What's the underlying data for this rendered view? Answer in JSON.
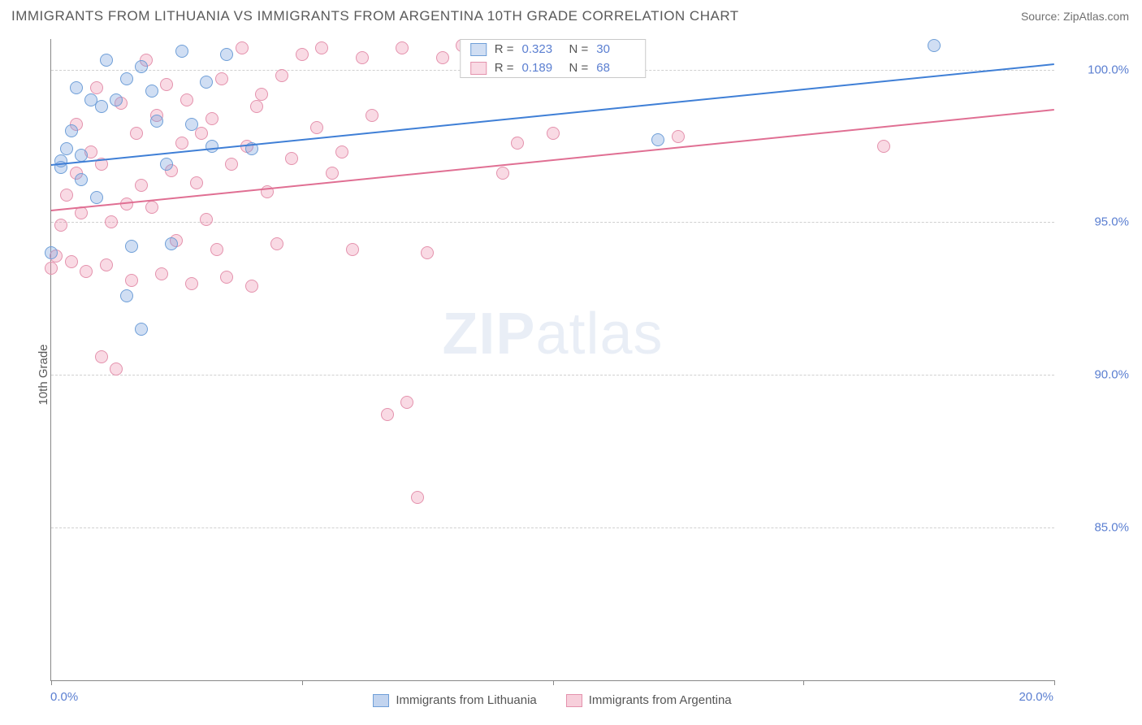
{
  "header": {
    "title": "IMMIGRANTS FROM LITHUANIA VS IMMIGRANTS FROM ARGENTINA 10TH GRADE CORRELATION CHART",
    "source": "Source: ZipAtlas.com"
  },
  "ylabel": "10th Grade",
  "watermark": {
    "part1": "ZIP",
    "part2": "atlas"
  },
  "chart": {
    "type": "scatter",
    "background_color": "#ffffff",
    "grid_color": "#d0d0d0",
    "axis_color": "#888888",
    "tick_label_color": "#5b7fd1",
    "tick_fontsize": 15,
    "xlim": [
      0,
      20
    ],
    "ylim": [
      80,
      101
    ],
    "xticks": [
      0,
      5,
      10,
      15,
      20
    ],
    "xtick_labels": [
      "0.0%",
      "",
      "",
      "",
      "20.0%"
    ],
    "yticks": [
      85,
      90,
      95,
      100
    ],
    "ytick_labels": [
      "85.0%",
      "90.0%",
      "95.0%",
      "100.0%"
    ],
    "marker_radius": 8,
    "marker_opacity": 0.35,
    "series": [
      {
        "name": "Immigrants from Lithuania",
        "color_fill": "rgba(120,160,220,0.35)",
        "color_stroke": "#6f9fd8",
        "R": "0.323",
        "N": "30",
        "trend": {
          "y_at_x0": 96.9,
          "y_at_x20": 100.2,
          "color": "#3f7fd6",
          "width": 2
        },
        "points": [
          [
            0.2,
            96.8
          ],
          [
            0.2,
            97.0
          ],
          [
            0.3,
            97.4
          ],
          [
            0.4,
            98.0
          ],
          [
            0.5,
            99.4
          ],
          [
            0.6,
            97.2
          ],
          [
            0.6,
            96.4
          ],
          [
            0.8,
            99.0
          ],
          [
            0.9,
            95.8
          ],
          [
            1.0,
            98.8
          ],
          [
            1.1,
            100.3
          ],
          [
            1.3,
            99.0
          ],
          [
            1.5,
            99.7
          ],
          [
            1.5,
            92.6
          ],
          [
            1.6,
            94.2
          ],
          [
            1.8,
            100.1
          ],
          [
            1.8,
            91.5
          ],
          [
            2.0,
            99.3
          ],
          [
            2.1,
            98.3
          ],
          [
            2.3,
            96.9
          ],
          [
            2.4,
            94.3
          ],
          [
            2.6,
            100.6
          ],
          [
            2.8,
            98.2
          ],
          [
            3.1,
            99.6
          ],
          [
            3.2,
            97.5
          ],
          [
            3.5,
            100.5
          ],
          [
            4.0,
            97.4
          ],
          [
            12.1,
            97.7
          ],
          [
            17.6,
            100.8
          ],
          [
            0.0,
            94.0
          ]
        ]
      },
      {
        "name": "Immigrants from Argentina",
        "color_fill": "rgba(235,140,170,0.32)",
        "color_stroke": "#e492ad",
        "R": "0.189",
        "N": "68",
        "trend": {
          "y_at_x0": 95.4,
          "y_at_x20": 98.7,
          "color": "#e06f93",
          "width": 2
        },
        "points": [
          [
            0.0,
            93.5
          ],
          [
            0.1,
            93.9
          ],
          [
            0.2,
            94.9
          ],
          [
            0.3,
            95.9
          ],
          [
            0.4,
            93.7
          ],
          [
            0.5,
            96.6
          ],
          [
            0.5,
            98.2
          ],
          [
            0.6,
            95.3
          ],
          [
            0.7,
            93.4
          ],
          [
            0.8,
            97.3
          ],
          [
            0.9,
            99.4
          ],
          [
            1.0,
            96.9
          ],
          [
            1.1,
            93.6
          ],
          [
            1.2,
            95.0
          ],
          [
            1.3,
            90.2
          ],
          [
            1.4,
            98.9
          ],
          [
            1.5,
            95.6
          ],
          [
            1.6,
            93.1
          ],
          [
            1.7,
            97.9
          ],
          [
            1.8,
            96.2
          ],
          [
            1.9,
            100.3
          ],
          [
            2.0,
            95.5
          ],
          [
            2.1,
            98.5
          ],
          [
            2.2,
            93.3
          ],
          [
            2.3,
            99.5
          ],
          [
            2.4,
            96.7
          ],
          [
            2.5,
            94.4
          ],
          [
            2.6,
            97.6
          ],
          [
            2.7,
            99.0
          ],
          [
            2.8,
            93.0
          ],
          [
            2.9,
            96.3
          ],
          [
            3.0,
            97.9
          ],
          [
            3.1,
            95.1
          ],
          [
            3.2,
            98.4
          ],
          [
            3.3,
            94.1
          ],
          [
            3.4,
            99.7
          ],
          [
            3.5,
            93.2
          ],
          [
            3.6,
            96.9
          ],
          [
            3.8,
            100.7
          ],
          [
            3.9,
            97.5
          ],
          [
            4.0,
            92.9
          ],
          [
            4.1,
            98.8
          ],
          [
            4.2,
            99.2
          ],
          [
            4.3,
            96.0
          ],
          [
            4.5,
            94.3
          ],
          [
            4.6,
            99.8
          ],
          [
            4.8,
            97.1
          ],
          [
            5.0,
            100.5
          ],
          [
            5.3,
            98.1
          ],
          [
            5.4,
            100.7
          ],
          [
            5.6,
            96.6
          ],
          [
            5.8,
            97.3
          ],
          [
            6.0,
            94.1
          ],
          [
            6.2,
            100.4
          ],
          [
            6.4,
            98.5
          ],
          [
            6.7,
            88.7
          ],
          [
            7.0,
            100.7
          ],
          [
            7.1,
            89.1
          ],
          [
            7.3,
            86.0
          ],
          [
            7.5,
            94.0
          ],
          [
            7.8,
            100.4
          ],
          [
            8.2,
            100.8
          ],
          [
            9.0,
            96.6
          ],
          [
            9.3,
            97.6
          ],
          [
            10.0,
            97.9
          ],
          [
            12.5,
            97.8
          ],
          [
            16.6,
            97.5
          ],
          [
            1.0,
            90.6
          ]
        ]
      }
    ]
  },
  "legend_bottom": [
    {
      "label": "Immigrants from Lithuania",
      "fill": "rgba(120,160,220,0.45)",
      "stroke": "#6f9fd8"
    },
    {
      "label": "Immigrants from Argentina",
      "fill": "rgba(235,140,170,0.42)",
      "stroke": "#e492ad"
    }
  ],
  "legend_top_labels": {
    "R": "R =",
    "N": "N ="
  }
}
